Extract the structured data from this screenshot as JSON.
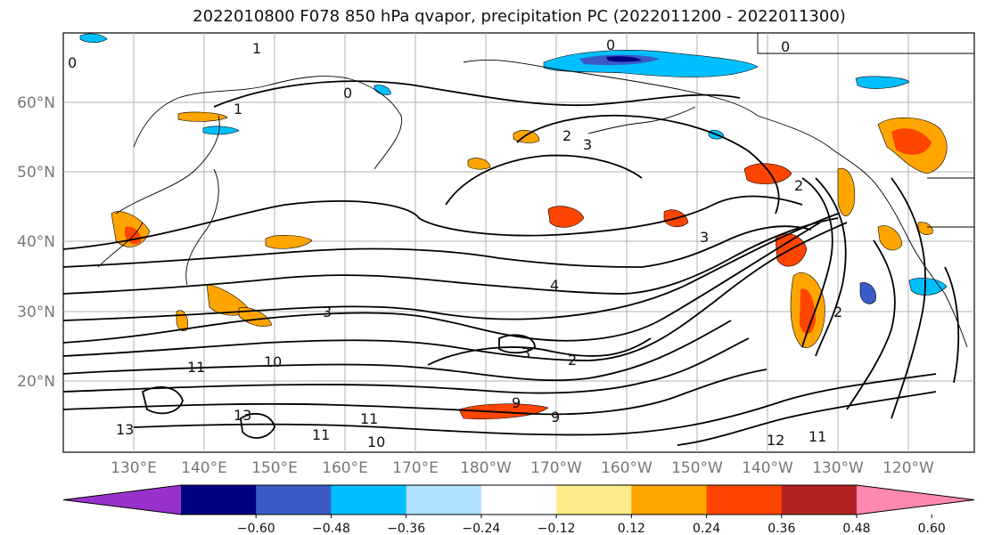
{
  "title": "2022010800 F078 850 hPa qvapor, precipitation PC (2022011200 - 2022011300)",
  "lat_labels": [
    "60°N",
    "50°N",
    "40°N",
    "30°N",
    "20°N"
  ],
  "lon_labels": [
    "130°E",
    "140°E",
    "150°E",
    "160°E",
    "170°E",
    "180°W",
    "170°W",
    "160°W",
    "150°W",
    "140°W",
    "130°W",
    "120°W"
  ],
  "colorbar": {
    "colors": [
      "#9932cc",
      "#000080",
      "#3a5bc7",
      "#00bfff",
      "#b0e0ff",
      "#ffffff",
      "#ffeb88",
      "#ffa500",
      "#ff4500",
      "#b22222",
      "#ff88b0"
    ],
    "tick_labels": [
      "−0.60",
      "−0.48",
      "−0.36",
      "−0.24",
      "−0.12",
      "0.12",
      "0.24",
      "0.36",
      "0.48",
      "0.60"
    ]
  },
  "contour_labels": [
    "1",
    "1",
    "0",
    "0",
    "2",
    "2",
    "3",
    "3",
    "4",
    "3",
    "2",
    "3",
    "10",
    "11",
    "9",
    "9",
    "11",
    "11",
    "10",
    "12",
    "11",
    "13",
    "13",
    "0",
    "0",
    "2"
  ]
}
